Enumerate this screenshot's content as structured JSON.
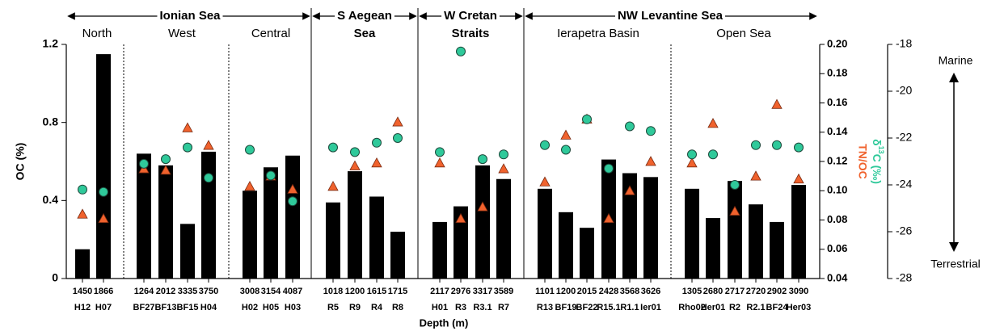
{
  "chart_data": {
    "type": "bar",
    "categories": [
      "H12",
      "H07",
      "BF27",
      "BF13",
      "BF15",
      "H04",
      "H02",
      "H05",
      "H03",
      "R5",
      "R9",
      "R4",
      "R8",
      "H01",
      "R3",
      "R3.1",
      "R7",
      "R13",
      "BF19",
      "BF22",
      "R15.1",
      "R1.1",
      "Ier01",
      "Rho02",
      "Her01",
      "R2",
      "R2.1",
      "BF24",
      "Her03"
    ],
    "depths": [
      "1450",
      "1866",
      "1264",
      "2012",
      "3335",
      "3750",
      "3008",
      "3154",
      "4087",
      "1018",
      "1200",
      "1615",
      "1715",
      "2117",
      "2976",
      "3317",
      "3589",
      "1101",
      "1200",
      "2015",
      "2428",
      "3568",
      "3626",
      "1305",
      "2680",
      "2717",
      "2720",
      "2902",
      "3090"
    ],
    "x_label": "Depth (m)",
    "y_label": "OC (%)",
    "y2_label": "TN/OC",
    "y3_label": {
      "prefix": "δ",
      "sup": "13",
      "suffix": "C (‰)"
    },
    "regions": [
      "Ionian Sea",
      "S Aegean",
      "W Cretan",
      "NW Levantine Sea"
    ],
    "subregions": [
      "North",
      "West",
      "Central",
      "Sea",
      "Straits",
      "Ierapetra Basin",
      "Open Sea"
    ],
    "annotations": [
      "Marine",
      "Terrestrial"
    ],
    "ylim": [
      0,
      1.2
    ],
    "yticks": [
      0,
      0.4,
      0.8,
      1.2
    ],
    "y2lim": [
      0.04,
      0.2
    ],
    "y2ticks": [
      0.04,
      0.06,
      0.08,
      {
        "value": 0.1,
        "label": "0.10"
      },
      0.12,
      0.14,
      0.16,
      0.18,
      {
        "value": 0.2,
        "label": "0.20"
      }
    ],
    "y3lim": [
      -28,
      -18
    ],
    "y3ticks": [
      -28,
      -26,
      -24,
      -22,
      -20,
      -18
    ],
    "series": [
      {
        "color": "#000000",
        "marker": "bar",
        "values": [
          0.15,
          1.15,
          0.64,
          0.58,
          0.28,
          0.65,
          0.45,
          0.57,
          0.63,
          0.39,
          0.55,
          0.42,
          0.24,
          0.29,
          0.37,
          0.58,
          0.51,
          0.46,
          0.34,
          0.26,
          0.61,
          0.54,
          0.52,
          0.46,
          0.31,
          0.5,
          0.38,
          0.29,
          0.48
        ]
      },
      {
        "color": "#f0622d",
        "marker": "triangle",
        "axis": "y2",
        "values": [
          0.084,
          0.081,
          0.115,
          0.114,
          0.143,
          0.131,
          0.103,
          0.11,
          0.101,
          0.103,
          0.117,
          0.119,
          0.147,
          0.119,
          0.081,
          0.089,
          0.115,
          0.106,
          0.138,
          0.149,
          0.081,
          0.1,
          0.12,
          0.119,
          0.146,
          0.086,
          0.11,
          0.159,
          0.108
        ]
      },
      {
        "color": "#2fc99a",
        "marker": "circle",
        "axis": "y3",
        "values": [
          -24.2,
          -24.3,
          -23.1,
          -22.9,
          -22.4,
          -23.7,
          -22.5,
          -23.6,
          -24.7,
          -22.4,
          -22.6,
          -22.2,
          -22.0,
          -22.6,
          -18.3,
          -22.9,
          -22.7,
          -22.3,
          -22.5,
          -21.2,
          -23.3,
          -21.5,
          -21.7,
          -22.7,
          -22.7,
          -24.0,
          -22.3,
          -22.3,
          -22.4
        ]
      }
    ]
  }
}
